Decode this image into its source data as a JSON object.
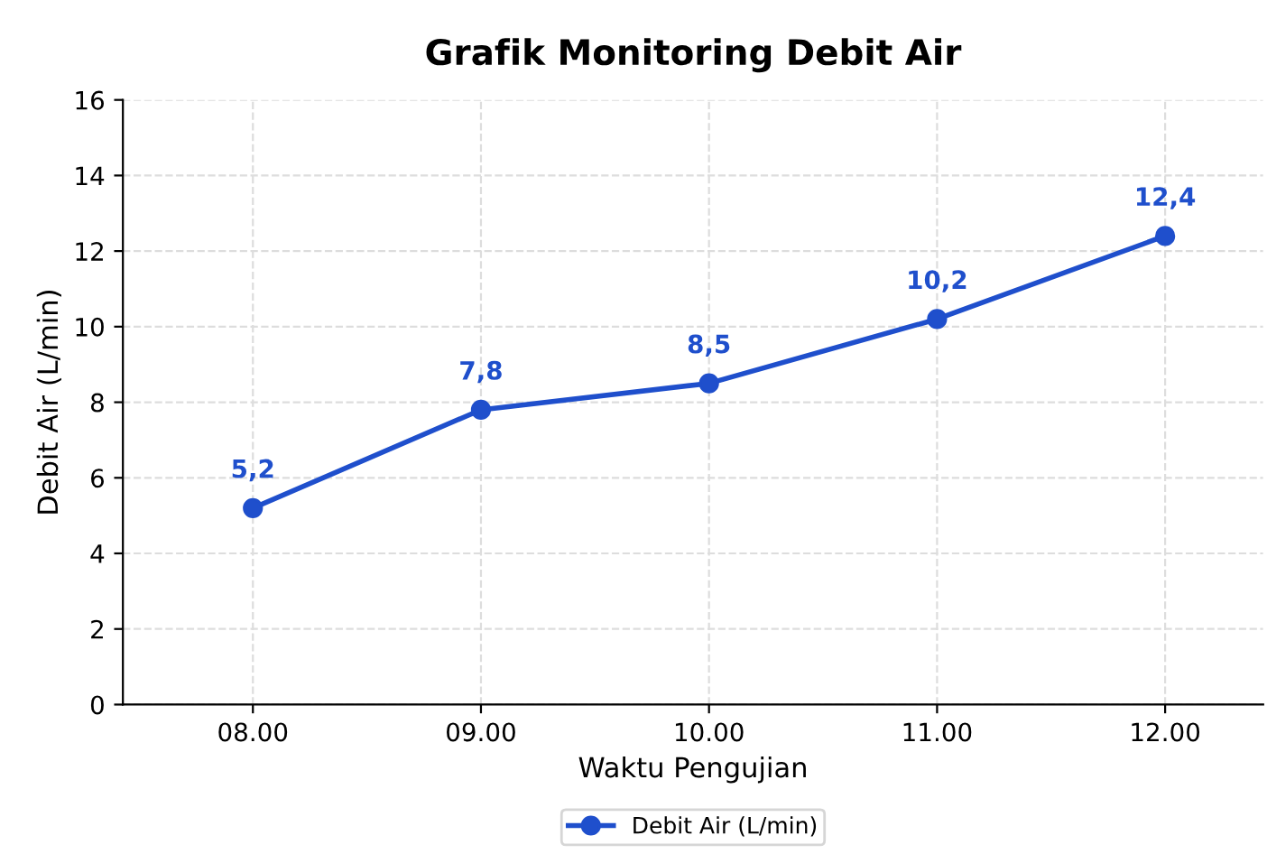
{
  "chart_data": {
    "type": "line",
    "title": "Grafik Monitoring Debit Air",
    "xlabel": "Waktu Pengujian",
    "ylabel": "Debit Air (L/min)",
    "categories": [
      "08.00",
      "09.00",
      "10.00",
      "11.00",
      "12.00"
    ],
    "series": [
      {
        "name": "Debit Air (L/min)",
        "color": "#1f4fcc",
        "values": [
          5.2,
          7.8,
          8.5,
          10.2,
          12.4
        ],
        "value_labels": [
          "5,2",
          "7,8",
          "8,5",
          "10,2",
          "12,4"
        ]
      }
    ],
    "ylim": [
      0,
      16
    ],
    "yticks": [
      0,
      2,
      4,
      6,
      8,
      10,
      12,
      14,
      16
    ],
    "grid": true,
    "legend": "bottom",
    "marker": "circle",
    "line_style": "solid"
  }
}
